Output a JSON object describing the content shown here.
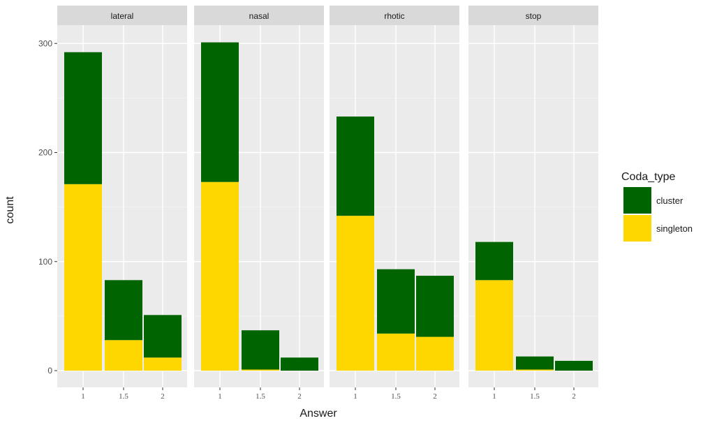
{
  "chart_data": {
    "type": "bar",
    "stacked": true,
    "facets": [
      "lateral",
      "nasal",
      "rhotic",
      "stop"
    ],
    "xlabel": "Answer",
    "ylabel": "count",
    "ylim": [
      0,
      315
    ],
    "yticks": [
      0,
      100,
      200,
      300
    ],
    "xticks": [
      "1",
      "1.5",
      "2"
    ],
    "legend": {
      "title": "Coda_type",
      "position": "right"
    },
    "series": [
      {
        "name": "cluster",
        "color": "#006400"
      },
      {
        "name": "singleton",
        "color": "#FFD700"
      }
    ],
    "panels": [
      {
        "facet": "lateral",
        "bars": [
          {
            "x": "1",
            "singleton": 171,
            "cluster": 121
          },
          {
            "x": "1.5",
            "singleton": 28,
            "cluster": 55
          },
          {
            "x": "2",
            "singleton": 12,
            "cluster": 39
          }
        ]
      },
      {
        "facet": "nasal",
        "bars": [
          {
            "x": "1",
            "singleton": 173,
            "cluster": 128
          },
          {
            "x": "1.5",
            "singleton": 1,
            "cluster": 36
          },
          {
            "x": "2",
            "singleton": 0,
            "cluster": 12
          }
        ]
      },
      {
        "facet": "rhotic",
        "bars": [
          {
            "x": "1",
            "singleton": 142,
            "cluster": 91
          },
          {
            "x": "1.5",
            "singleton": 34,
            "cluster": 59
          },
          {
            "x": "2",
            "singleton": 31,
            "cluster": 56
          }
        ]
      },
      {
        "facet": "stop",
        "bars": [
          {
            "x": "1",
            "singleton": 83,
            "cluster": 35
          },
          {
            "x": "1.5",
            "singleton": 1,
            "cluster": 12
          },
          {
            "x": "2",
            "singleton": 0,
            "cluster": 9
          }
        ]
      }
    ],
    "grid": true
  }
}
